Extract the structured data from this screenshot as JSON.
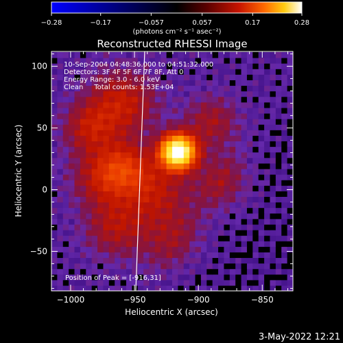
{
  "chart_data": {
    "type": "heatmap",
    "title": "Reconstructed RHESSI Image",
    "xlabel": "Heliocentric X (arcsec)",
    "ylabel": "Heliocentric Y (arcsec)",
    "xlim": [
      -1015,
      -826
    ],
    "ylim": [
      -82,
      112
    ],
    "xticks": [
      -1000,
      -950,
      -900,
      -850
    ],
    "yticks": [
      -50,
      0,
      50,
      100
    ],
    "colorbar": {
      "min": -0.28,
      "max": 0.28,
      "ticks": [
        -0.28,
        -0.17,
        -0.057,
        0.057,
        0.17,
        0.28
      ],
      "tick_labels": [
        "−0.28",
        "−0.17",
        "−0.057",
        "0.057",
        "0.17",
        "0.28"
      ],
      "unit_label": "(photons cm⁻² s⁻¹ asec⁻²)",
      "colormap": "rhessi_red_purple"
    },
    "annotations": [
      "10-Sep-2004 04:48:36.000 to 04:51:32.000",
      "Detectors: 3F 4F 5F 6F 7F 8F, Att 0",
      "Energy Range: 3.0 - 6.0 keV",
      "Clean     Total counts: 1.53E+04"
    ],
    "peak_label": "Position of Peak = [-916,31]",
    "peak": [
      -916,
      31
    ],
    "footer_date": "3-May-2022 12:21",
    "image": {
      "x0": -1015,
      "dx": 4.5,
      "nx": 42,
      "y0": -82,
      "dy": 4.5,
      "ny": 43,
      "sources": [
        {
          "x": -916,
          "y": 31,
          "sigma": 9,
          "amp": 0.3
        },
        {
          "x": -960,
          "y": 70,
          "sigma": 18,
          "amp": 0.06
        },
        {
          "x": -985,
          "y": 50,
          "sigma": 14,
          "amp": 0.05
        },
        {
          "x": -975,
          "y": 10,
          "sigma": 16,
          "amp": 0.05
        },
        {
          "x": -958,
          "y": 18,
          "sigma": 14,
          "amp": 0.06
        },
        {
          "x": -935,
          "y": 0,
          "sigma": 18,
          "amp": 0.05
        },
        {
          "x": -890,
          "y": 55,
          "sigma": 14,
          "amp": 0.04
        },
        {
          "x": -880,
          "y": 5,
          "sigma": 16,
          "amp": 0.04
        },
        {
          "x": -965,
          "y": -30,
          "sigma": 16,
          "amp": 0.045
        },
        {
          "x": -920,
          "y": -40,
          "sigma": 18,
          "amp": 0.035
        }
      ],
      "limb": {
        "x_bottom": -949,
        "x_top": -942
      }
    }
  }
}
